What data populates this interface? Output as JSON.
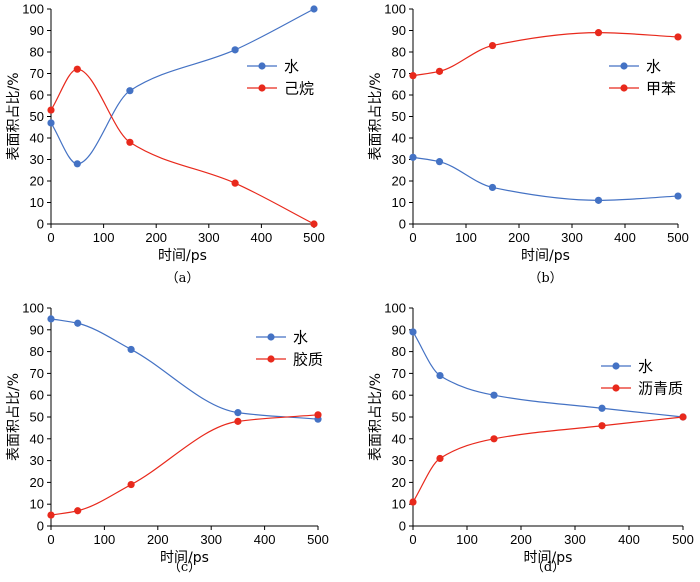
{
  "chart_data": [
    {
      "type": "line",
      "caption": "（a）",
      "xlabel": "时间/ps",
      "ylabel": "表面积占比/%",
      "xlim": [
        0,
        500
      ],
      "ylim": [
        0,
        100
      ],
      "xticks": [
        0,
        100,
        200,
        300,
        400,
        500
      ],
      "yticks": [
        0,
        10,
        20,
        30,
        40,
        50,
        60,
        70,
        80,
        90,
        100
      ],
      "x": [
        0,
        50,
        150,
        350,
        500
      ],
      "series": [
        {
          "name": "水",
          "color": "#4472c4",
          "values": [
            47,
            28,
            62,
            81,
            100
          ]
        },
        {
          "name": "己烷",
          "color": "#e8291c",
          "values": [
            53,
            72,
            38,
            19,
            0
          ]
        }
      ],
      "legend": "right"
    },
    {
      "type": "line",
      "caption": "（b）",
      "xlabel": "时间/ps",
      "ylabel": "表面积占比/%",
      "xlim": [
        0,
        500
      ],
      "ylim": [
        0,
        100
      ],
      "xticks": [
        0,
        100,
        200,
        300,
        400,
        500
      ],
      "yticks": [
        0,
        10,
        20,
        30,
        40,
        50,
        60,
        70,
        80,
        90,
        100
      ],
      "x": [
        0,
        50,
        150,
        350,
        500
      ],
      "series": [
        {
          "name": "水",
          "color": "#4472c4",
          "values": [
            31,
            29,
            17,
            11,
            13
          ]
        },
        {
          "name": "甲苯",
          "color": "#e8291c",
          "values": [
            69,
            71,
            83,
            89,
            87
          ]
        }
      ],
      "legend": "right"
    },
    {
      "type": "line",
      "caption": "（c）",
      "xlabel": "时间/ps",
      "ylabel": "表面积占比/%",
      "xlim": [
        0,
        500
      ],
      "ylim": [
        0,
        100
      ],
      "xticks": [
        0,
        100,
        200,
        300,
        400,
        500
      ],
      "yticks": [
        0,
        10,
        20,
        30,
        40,
        50,
        60,
        70,
        80,
        90,
        100
      ],
      "x": [
        0,
        50,
        150,
        350,
        500
      ],
      "series": [
        {
          "name": "水",
          "color": "#4472c4",
          "values": [
            95,
            93,
            81,
            52,
            49
          ]
        },
        {
          "name": "胶质",
          "color": "#e8291c",
          "values": [
            5,
            7,
            19,
            48,
            51
          ]
        }
      ],
      "legend": "right"
    },
    {
      "type": "line",
      "caption": "（d）",
      "xlabel": "时间/ps",
      "ylabel": "表面积占比/%",
      "xlim": [
        0,
        500
      ],
      "ylim": [
        0,
        100
      ],
      "xticks": [
        0,
        100,
        200,
        300,
        400,
        500
      ],
      "yticks": [
        0,
        10,
        20,
        30,
        40,
        50,
        60,
        70,
        80,
        90,
        100
      ],
      "x": [
        0,
        50,
        150,
        350,
        500
      ],
      "series": [
        {
          "name": "水",
          "color": "#4472c4",
          "values": [
            89,
            69,
            60,
            54,
            50
          ]
        },
        {
          "name": "沥青质",
          "color": "#e8291c",
          "values": [
            11,
            31,
            40,
            46,
            50
          ]
        }
      ],
      "legend": "right"
    }
  ]
}
